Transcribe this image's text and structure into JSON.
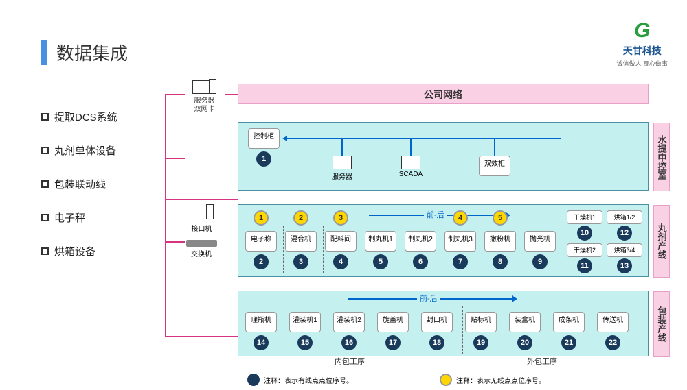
{
  "title": "数据集成",
  "logo": {
    "icon": "G",
    "main": "天甘科技",
    "sub": "诚信做人 良心做事"
  },
  "sidebar": [
    "提取DCS系统",
    "丸剂单体设备",
    "包装联动线",
    "电子秤",
    "烘箱设备"
  ],
  "network_banner": "公司网络",
  "server_dual": "服务器\n双网卡",
  "interface_label": "接口机",
  "switch_label": "交换机",
  "sections": {
    "s1": {
      "label": "水提中控室",
      "control_box": "控制柜",
      "server": "服务器",
      "scada": "SCADA",
      "dual_cabinet": "双效柜"
    },
    "s2": {
      "label": "丸剂产线",
      "arrow_label": "前-后",
      "row": [
        {
          "name": "电子称",
          "n": "2",
          "y": "1"
        },
        {
          "name": "混合机",
          "n": "3",
          "y": "2"
        },
        {
          "name": "配料间",
          "n": "4",
          "y": "3"
        },
        {
          "name": "制丸机1",
          "n": "5"
        },
        {
          "name": "制丸机2",
          "n": "6"
        },
        {
          "name": "制丸机3",
          "n": "7",
          "y": "4"
        },
        {
          "name": "撒粉机",
          "n": "8",
          "y": "5"
        },
        {
          "name": "抛光机",
          "n": "9"
        }
      ],
      "extra": [
        {
          "name": "干燥机1",
          "n": "10"
        },
        {
          "name": "烘箱1/2",
          "n": "12"
        },
        {
          "name": "干燥机2",
          "n": "11"
        },
        {
          "name": "烘箱3/4",
          "n": "13"
        }
      ]
    },
    "s3": {
      "label": "包装产线",
      "arrow_label": "前-后",
      "row": [
        {
          "name": "理瓶机",
          "n": "14"
        },
        {
          "name": "灌装机1",
          "n": "15"
        },
        {
          "name": "灌装机2",
          "n": "16"
        },
        {
          "name": "旋盖机",
          "n": "17"
        },
        {
          "name": "封口机",
          "n": "18"
        },
        {
          "name": "贴标机",
          "n": "19"
        },
        {
          "name": "装盒机",
          "n": "20"
        },
        {
          "name": "成条机",
          "n": "21"
        },
        {
          "name": "传送机",
          "n": "22"
        }
      ],
      "sub1": "内包工序",
      "sub2": "外包工序"
    }
  },
  "legend": {
    "wired": "注释：表示有线点点位序号。",
    "wireless": "注释：表示无线点点位序号。"
  },
  "colors": {
    "accent": "#4a90e2",
    "pink": "#fad0e4",
    "cyan": "#c5f0f0",
    "navy": "#1a3a5c",
    "yellow": "#ffd700",
    "magenta": "#d63384",
    "blue": "#0066cc"
  }
}
